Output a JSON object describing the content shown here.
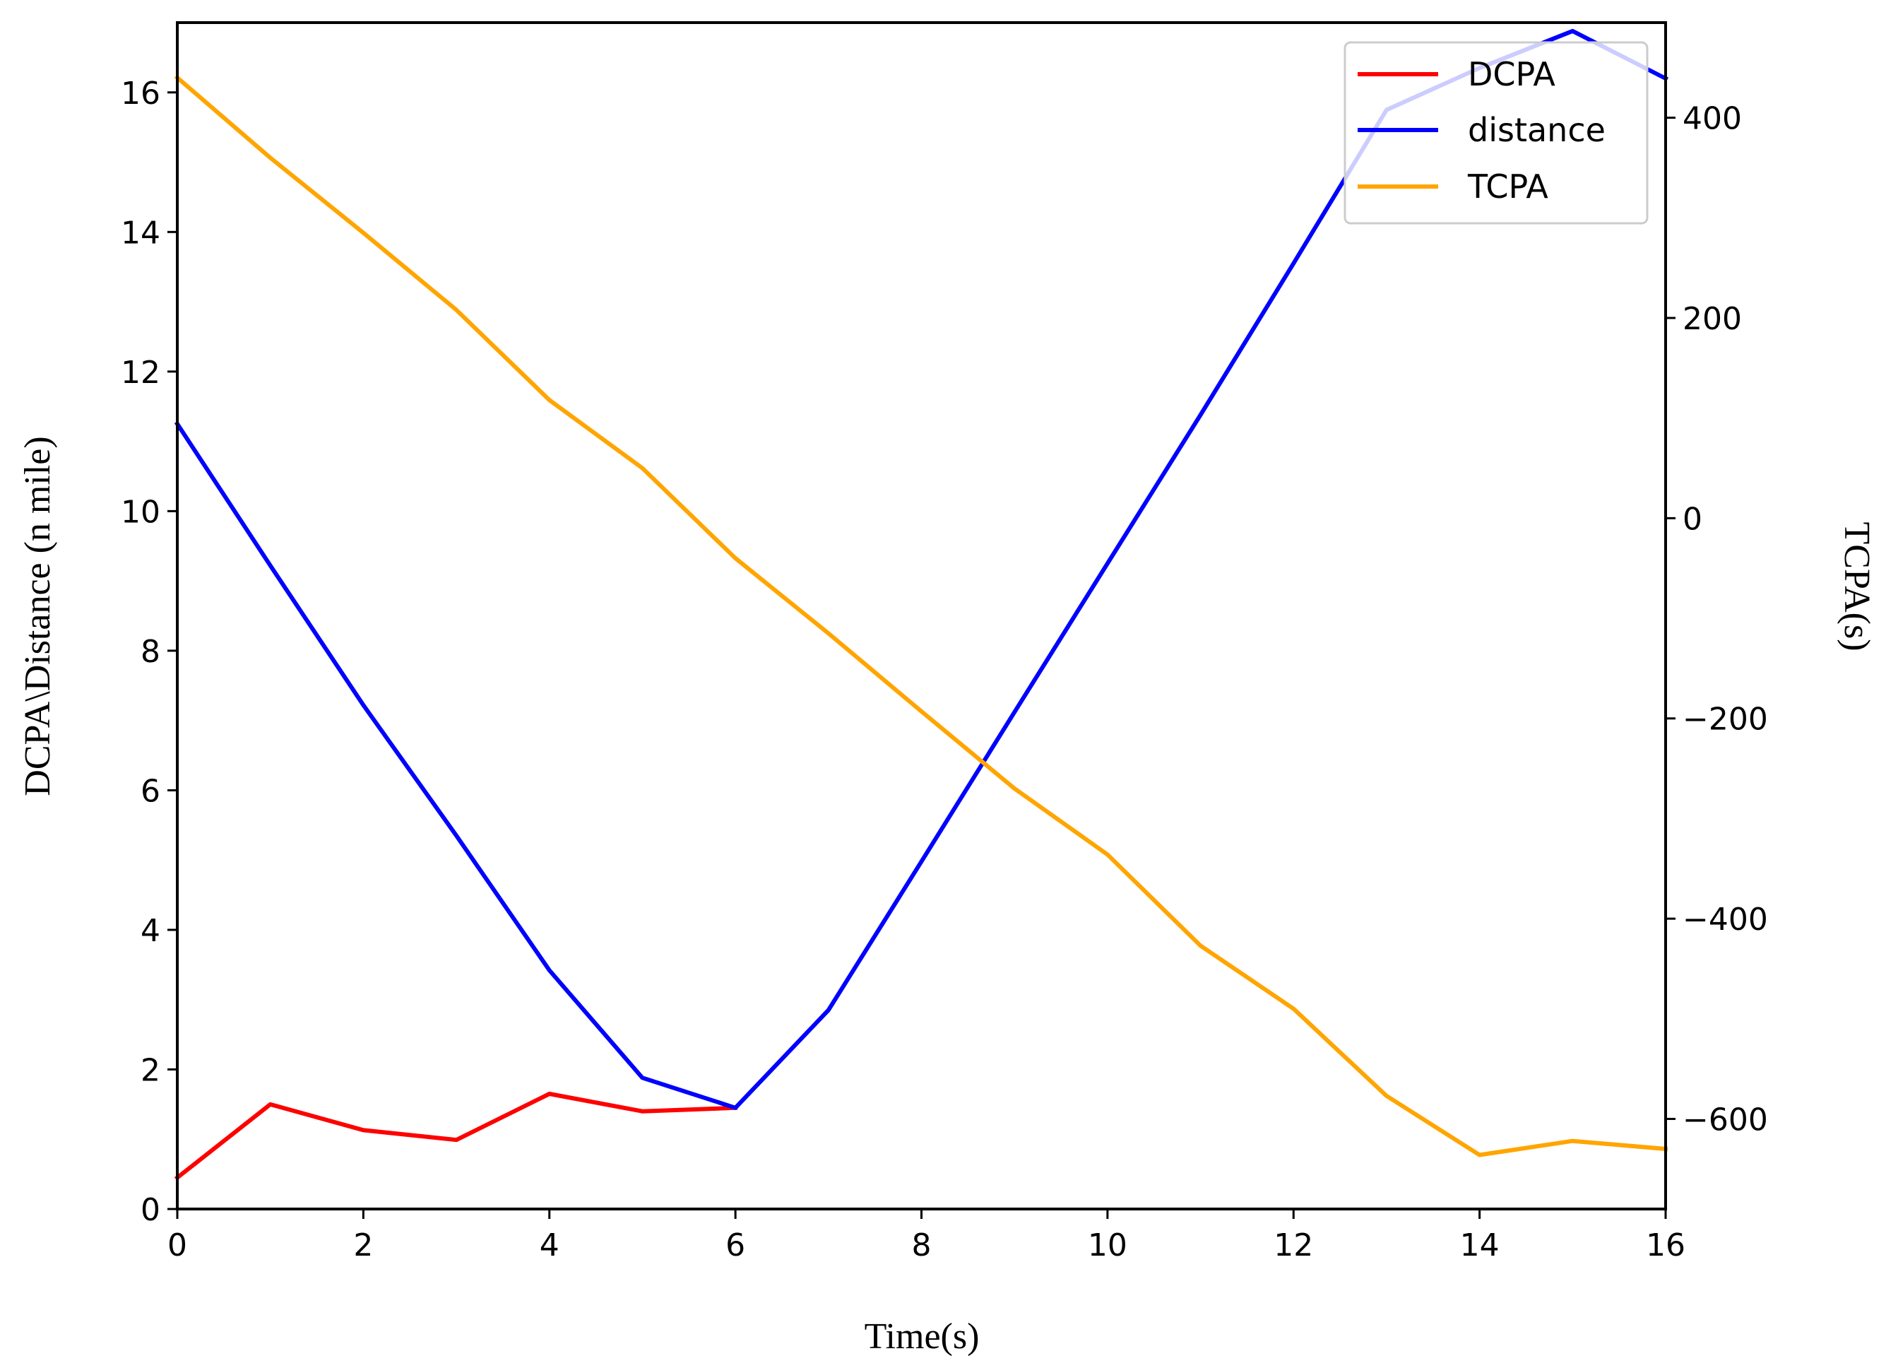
{
  "chart_data": {
    "type": "line",
    "x": [
      0,
      1,
      2,
      3,
      4,
      5,
      6,
      7,
      8,
      9,
      10,
      11,
      12,
      13,
      14,
      15,
      16
    ],
    "xlim": [
      0,
      16
    ],
    "xticks": [
      0,
      2,
      4,
      6,
      8,
      10,
      12,
      14,
      16
    ],
    "xlabel": "Time(s)",
    "left_axis": {
      "label": "DCPA\\Distance (n mile)",
      "ylim": [
        0,
        17
      ],
      "ticks": [
        0,
        2,
        4,
        6,
        8,
        10,
        12,
        14,
        16
      ]
    },
    "right_axis": {
      "label": "TCPA(s)",
      "ylim": [
        -690,
        495
      ],
      "ticks": [
        -600,
        -400,
        -200,
        0,
        200,
        400
      ],
      "tick_labels": [
        "−600",
        "−400",
        "−200",
        "0",
        "200",
        "400"
      ]
    },
    "series": [
      {
        "name": "DCPA",
        "axis": "left",
        "color": "#ff0000",
        "x": [
          0,
          1,
          2,
          3,
          4,
          5,
          6
        ],
        "values": [
          0.45,
          1.5,
          1.13,
          0.99,
          1.65,
          1.4,
          1.45
        ]
      },
      {
        "name": "distance",
        "axis": "left",
        "color": "#0000ff",
        "x": [
          0,
          1,
          2,
          3,
          4,
          5,
          6,
          7,
          8,
          9,
          10,
          11,
          12,
          13,
          14,
          15,
          16
        ],
        "values": [
          11.25,
          9.22,
          7.22,
          5.35,
          3.42,
          1.88,
          1.45,
          2.85,
          4.98,
          7.12,
          9.25,
          11.38,
          13.55,
          15.75,
          16.35,
          16.88,
          16.2
        ]
      },
      {
        "name": "TCPA",
        "axis": "right",
        "color": "#ffa500",
        "x": [
          0,
          1,
          2,
          3,
          4,
          5,
          6,
          7,
          8,
          9,
          10,
          11,
          12,
          13,
          14,
          15,
          16
        ],
        "values": [
          440,
          360,
          285,
          208,
          118,
          50,
          -40,
          -115,
          -193,
          -270,
          -336,
          -427,
          -490,
          -577,
          -636,
          -622,
          -630
        ]
      }
    ],
    "legend": {
      "position": "upper-right",
      "entries": [
        "DCPA",
        "distance",
        "TCPA"
      ]
    },
    "grid": false
  }
}
